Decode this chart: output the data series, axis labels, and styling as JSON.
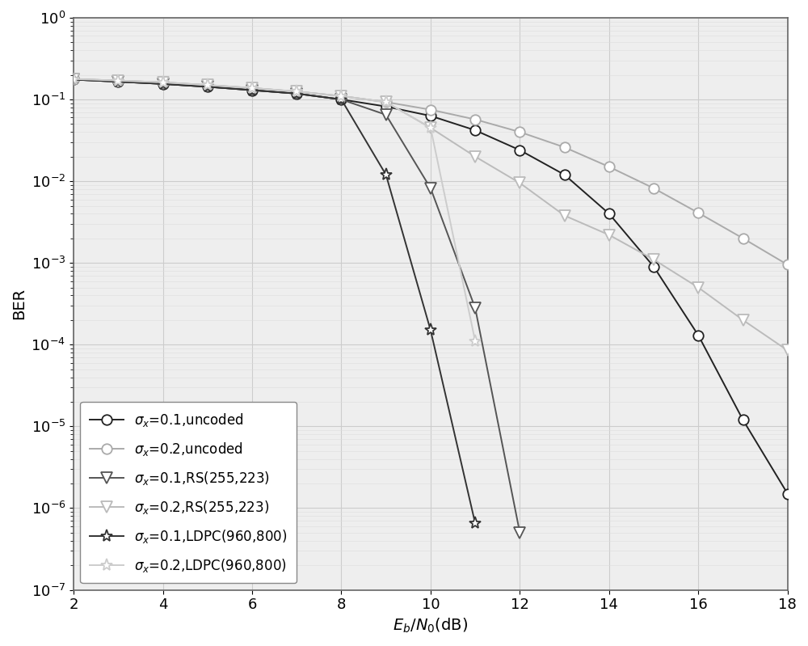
{
  "title": "",
  "xlabel": "$E_b/N_0$(dB)",
  "ylabel": "BER",
  "xlim": [
    2,
    18
  ],
  "ylim": [
    1e-07,
    1.0
  ],
  "xticks": [
    2,
    4,
    6,
    8,
    10,
    12,
    14,
    16,
    18
  ],
  "series": [
    {
      "label_key": "s01_uncoded",
      "color": "#222222",
      "linewidth": 1.4,
      "marker": "o",
      "markersize": 9,
      "linestyle": "-",
      "x": [
        2,
        3,
        4,
        5,
        6,
        7,
        8,
        9,
        10,
        11,
        12,
        13,
        14,
        15,
        16,
        17,
        18
      ],
      "y": [
        0.175,
        0.165,
        0.155,
        0.143,
        0.13,
        0.118,
        0.1,
        0.082,
        0.063,
        0.042,
        0.024,
        0.012,
        0.004,
        0.0009,
        0.00013,
        1.2e-05,
        1.5e-06
      ]
    },
    {
      "label_key": "s02_uncoded",
      "color": "#aaaaaa",
      "linewidth": 1.4,
      "marker": "o",
      "markersize": 9,
      "linestyle": "-",
      "x": [
        2,
        3,
        4,
        5,
        6,
        7,
        8,
        9,
        10,
        11,
        12,
        13,
        14,
        15,
        16,
        17,
        18
      ],
      "y": [
        0.178,
        0.17,
        0.162,
        0.15,
        0.138,
        0.125,
        0.11,
        0.093,
        0.075,
        0.057,
        0.04,
        0.026,
        0.015,
        0.0082,
        0.0041,
        0.002,
        0.00095
      ]
    },
    {
      "label_key": "s01_RS",
      "color": "#555555",
      "linewidth": 1.4,
      "marker": "v",
      "markersize": 10,
      "linestyle": "-",
      "x": [
        2,
        3,
        4,
        5,
        6,
        7,
        8,
        9,
        10,
        11,
        12
      ],
      "y": [
        0.175,
        0.165,
        0.155,
        0.143,
        0.13,
        0.118,
        0.1,
        0.065,
        0.0082,
        0.00028,
        5e-07
      ]
    },
    {
      "label_key": "s02_RS",
      "color": "#bbbbbb",
      "linewidth": 1.4,
      "marker": "v",
      "markersize": 10,
      "linestyle": "-",
      "x": [
        2,
        3,
        4,
        5,
        6,
        7,
        8,
        9,
        10,
        11,
        12,
        13,
        14,
        15,
        16,
        17,
        18
      ],
      "y": [
        0.178,
        0.17,
        0.162,
        0.15,
        0.138,
        0.125,
        0.11,
        0.093,
        0.045,
        0.02,
        0.0095,
        0.0038,
        0.0022,
        0.0011,
        0.0005,
        0.0002,
        8.5e-05
      ]
    },
    {
      "label_key": "s01_LDPC",
      "color": "#333333",
      "linewidth": 1.4,
      "marker": "*",
      "markersize": 11,
      "linestyle": "-",
      "x": [
        2,
        3,
        4,
        5,
        6,
        7,
        8,
        9,
        10,
        11
      ],
      "y": [
        0.175,
        0.165,
        0.155,
        0.143,
        0.13,
        0.118,
        0.1,
        0.012,
        0.00015,
        6.5e-07
      ]
    },
    {
      "label_key": "s02_LDPC",
      "color": "#cccccc",
      "linewidth": 1.4,
      "marker": "*",
      "markersize": 11,
      "linestyle": "-",
      "x": [
        2,
        3,
        4,
        5,
        6,
        7,
        8,
        9,
        10,
        11
      ],
      "y": [
        0.178,
        0.17,
        0.162,
        0.15,
        0.138,
        0.125,
        0.11,
        0.093,
        0.045,
        0.00011
      ]
    }
  ],
  "legend_labels": [
    "$\\sigma_x$=0.1,uncoded",
    "$\\sigma_x$=0.2,uncoded",
    "$\\sigma_x$=0.1,RS(255,223)",
    "$\\sigma_x$=0.2,RS(255,223)",
    "$\\sigma_x$=0.1,LDPC(960,800)",
    "$\\sigma_x$=0.2,LDPC(960,800)"
  ],
  "legend_loc": "lower left",
  "grid_major_color": "#cccccc",
  "grid_minor_color": "#dddddd",
  "background_color": "#eeeeee"
}
